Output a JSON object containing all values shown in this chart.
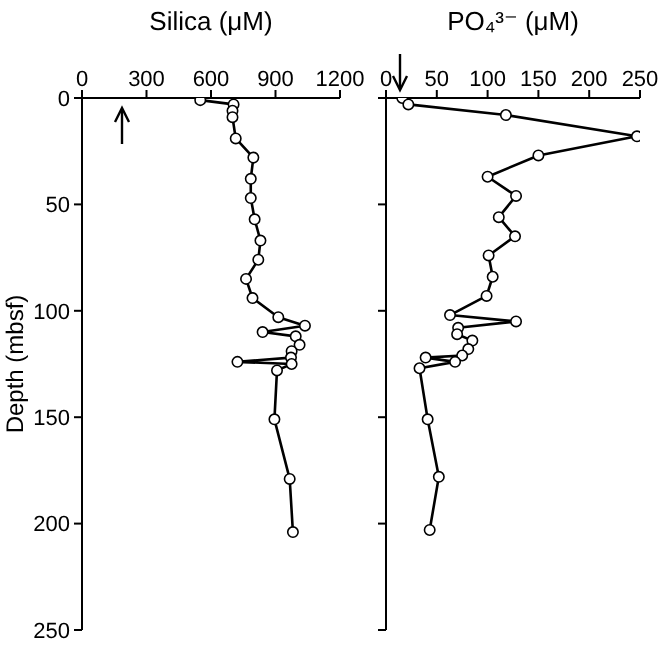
{
  "chart_data": [
    {
      "type": "line",
      "title": "Silica (μM)",
      "ylabel": "Depth (mbsf)",
      "marker": "circle",
      "color": "#000000",
      "x": [
        550,
        705,
        700,
        700,
        715,
        797,
        785,
        785,
        803,
        830,
        820,
        763,
        793,
        913,
        1037,
        840,
        994,
        1012,
        975,
        972,
        723,
        975,
        907,
        895,
        966,
        981
      ],
      "values": [
        1,
        3,
        6,
        9,
        19,
        28,
        38,
        47,
        57,
        67,
        76,
        85,
        94,
        103,
        107,
        110,
        112,
        116,
        119,
        122,
        124,
        125,
        128,
        151,
        179,
        204
      ],
      "xlim": [
        0,
        1200
      ],
      "xticks": [
        0,
        300,
        600,
        900,
        1200
      ],
      "ylim": [
        250,
        0
      ],
      "yticks": [
        0,
        50,
        100,
        150,
        200,
        250
      ]
    },
    {
      "type": "line",
      "title": "PO₄³⁻ (μM)",
      "marker": "circle",
      "color": "#000000",
      "tick_labels": "x",
      "x": [
        16,
        22,
        118,
        247,
        150,
        100,
        128,
        111,
        127,
        101,
        105,
        99,
        63,
        128,
        71,
        70,
        85,
        81,
        75,
        39,
        68,
        33,
        41,
        52,
        43
      ],
      "values": [
        0,
        3,
        8,
        18,
        27,
        37,
        46,
        56,
        65,
        74,
        84,
        93,
        102,
        105,
        108,
        111,
        114,
        118,
        121,
        122,
        124,
        127,
        151,
        178,
        203
      ],
      "xlim": [
        0,
        250
      ],
      "xticks": [
        0,
        50,
        100,
        150,
        200,
        250
      ],
      "ylim": [
        250,
        0
      ],
      "yticks": [
        0,
        50,
        100,
        150,
        200,
        250
      ]
    }
  ]
}
